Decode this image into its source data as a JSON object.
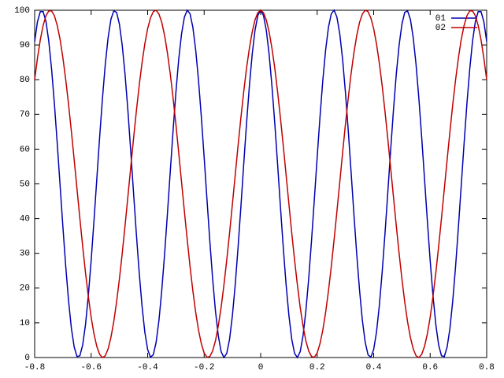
{
  "chart_data": {
    "type": "line",
    "x": [
      -0.8,
      -0.79,
      -0.78,
      -0.77,
      -0.76,
      -0.75,
      -0.74,
      -0.73,
      -0.72,
      -0.71,
      -0.7,
      -0.69,
      -0.68,
      -0.67,
      -0.66,
      -0.65,
      -0.64,
      -0.63,
      -0.62,
      -0.61,
      -0.6,
      -0.59,
      -0.58,
      -0.57,
      -0.56,
      -0.55,
      -0.54,
      -0.53,
      -0.52,
      -0.51,
      -0.5,
      -0.49,
      -0.48,
      -0.47,
      -0.46,
      -0.45,
      -0.44,
      -0.43,
      -0.42,
      -0.41,
      -0.4,
      -0.39,
      -0.38,
      -0.37,
      -0.36,
      -0.35,
      -0.34,
      -0.33,
      -0.32,
      -0.31,
      -0.3,
      -0.29,
      -0.28,
      -0.27,
      -0.26,
      -0.25,
      -0.24,
      -0.23,
      -0.22,
      -0.21,
      -0.2,
      -0.19,
      -0.18,
      -0.17,
      -0.16,
      -0.15,
      -0.14,
      -0.13,
      -0.12,
      -0.11,
      -0.1,
      -0.09,
      -0.08,
      -0.07,
      -0.06,
      -0.05,
      -0.04,
      -0.03,
      -0.02,
      -0.01,
      0,
      0.01,
      0.02,
      0.03,
      0.04,
      0.05,
      0.06,
      0.07,
      0.08,
      0.09,
      0.1,
      0.11,
      0.12,
      0.13,
      0.14,
      0.15,
      0.16,
      0.17,
      0.18,
      0.19,
      0.2,
      0.21,
      0.22,
      0.23,
      0.24,
      0.25,
      0.26,
      0.27,
      0.28,
      0.29,
      0.3,
      0.31,
      0.32,
      0.33,
      0.34,
      0.35,
      0.36,
      0.37,
      0.38,
      0.39,
      0.4,
      0.41,
      0.42,
      0.43,
      0.44,
      0.45,
      0.46,
      0.47,
      0.48,
      0.49,
      0.5,
      0.51,
      0.52,
      0.53,
      0.54,
      0.55,
      0.56,
      0.57,
      0.58,
      0.59,
      0.6,
      0.61,
      0.62,
      0.63,
      0.64,
      0.65,
      0.66,
      0.67,
      0.68,
      0.69,
      0.7,
      0.71,
      0.72,
      0.73,
      0.74,
      0.75,
      0.76,
      0.77,
      0.78,
      0.79,
      0.8
    ],
    "series": [
      {
        "name": "01",
        "color": "#0000b0",
        "values": [
          91.0,
          96.7,
          99.6,
          99.6,
          96.8,
          91.1,
          83.0,
          73.0,
          61.6,
          49.6,
          37.6,
          26.3,
          16.4,
          8.4,
          3.0,
          0.3,
          0.5,
          3.6,
          9.5,
          17.8,
          27.9,
          39.4,
          51.4,
          63.4,
          74.6,
          84.4,
          92.1,
          97.4,
          99.8,
          99.4,
          96.0,
          89.9,
          81.5,
          71.2,
          59.6,
          47.5,
          35.6,
          24.5,
          14.9,
          7.3,
          2.3,
          0.1,
          0.8,
          4.4,
          10.7,
          19.4,
          29.8,
          41.4,
          53.5,
          65.4,
          76.4,
          85.9,
          93.2,
          98.0,
          100.0,
          99.0,
          95.1,
          88.6,
          79.8,
          69.3,
          57.6,
          45.5,
          33.6,
          22.7,
          13.4,
          6.3,
          1.7,
          0.0,
          1.2,
          5.3,
          12.1,
          21.0,
          31.7,
          43.4,
          55.6,
          67.4,
          78.1,
          87.3,
          94.2,
          98.5,
          100,
          98.5,
          94.2,
          87.3,
          78.1,
          67.4,
          55.6,
          43.4,
          31.7,
          21.0,
          12.1,
          5.3,
          1.2,
          0.0,
          1.7,
          6.3,
          13.4,
          22.7,
          33.6,
          45.5,
          57.6,
          69.3,
          79.8,
          88.6,
          95.1,
          99.0,
          100.0,
          98.0,
          93.2,
          85.9,
          76.4,
          65.4,
          53.5,
          41.4,
          29.8,
          19.4,
          10.7,
          4.4,
          0.8,
          0.1,
          2.3,
          7.3,
          14.9,
          24.5,
          35.6,
          47.5,
          59.6,
          71.2,
          81.5,
          89.9,
          96.0,
          99.4,
          99.8,
          97.4,
          92.1,
          84.4,
          74.6,
          63.4,
          51.4,
          39.4,
          27.9,
          17.8,
          9.5,
          3.6,
          0.5,
          0.3,
          3.0,
          8.4,
          16.4,
          26.3,
          37.6,
          49.6,
          61.6,
          73.0,
          83.0,
          91.1,
          96.8,
          99.6,
          99.6,
          96.7,
          91.0
        ]
      },
      {
        "name": "02",
        "color": "#c00000",
        "values": [
          80.0,
          86.2,
          91.5,
          95.6,
          98.4,
          99.8,
          99.8,
          98.4,
          95.6,
          91.6,
          86.3,
          80.0,
          72.9,
          65.1,
          56.9,
          48.5,
          40.1,
          32.0,
          24.4,
          17.6,
          11.6,
          6.8,
          3.2,
          0.9,
          0.0,
          0.5,
          2.5,
          5.8,
          10.3,
          16.0,
          22.6,
          30.0,
          38.0,
          46.3,
          54.7,
          63.0,
          70.9,
          78.3,
          84.8,
          90.3,
          94.7,
          97.8,
          99.6,
          100.0,
          98.9,
          96.5,
          92.7,
          87.7,
          81.7,
          74.7,
          67.1,
          58.9,
          50.5,
          42.1,
          34.0,
          26.2,
          19.2,
          13.0,
          7.9,
          4.0,
          1.3,
          0.1,
          0.3,
          1.9,
          4.8,
          9.1,
          14.4,
          20.9,
          28.1,
          35.9,
          44.2,
          52.6,
          61.0,
          69.0,
          76.5,
          83.3,
          89.0,
          93.7,
          97.2,
          99.3,
          100,
          99.3,
          97.2,
          93.7,
          89.0,
          83.3,
          76.5,
          69.0,
          61.0,
          52.6,
          44.2,
          35.9,
          28.1,
          20.9,
          14.4,
          9.1,
          4.8,
          1.9,
          0.3,
          0.1,
          1.3,
          4.0,
          7.9,
          13.0,
          19.2,
          26.2,
          34.0,
          42.1,
          50.5,
          58.9,
          67.1,
          74.7,
          81.7,
          87.7,
          92.7,
          96.5,
          98.9,
          100.0,
          99.6,
          97.8,
          94.7,
          90.3,
          84.8,
          78.3,
          70.9,
          63.0,
          54.7,
          46.3,
          38.0,
          30.0,
          22.6,
          16.0,
          10.3,
          5.8,
          2.5,
          0.5,
          0.0,
          0.9,
          3.2,
          6.8,
          11.6,
          17.6,
          24.4,
          32.0,
          40.1,
          48.5,
          56.9,
          65.1,
          72.9,
          80.0,
          86.3,
          91.6,
          95.6,
          98.4,
          99.8,
          99.8,
          98.4,
          95.6,
          91.5,
          86.2,
          80.0
        ]
      }
    ],
    "xlim": [
      -0.8,
      0.8
    ],
    "xticks": [
      -0.8,
      -0.6,
      -0.4,
      -0.2,
      0,
      0.2,
      0.4,
      0.6,
      0.8
    ],
    "ylim": [
      0,
      100
    ],
    "yticks": [
      0,
      10,
      20,
      30,
      40,
      50,
      60,
      70,
      80,
      90,
      100
    ],
    "grid": false,
    "legend": "top-right"
  }
}
